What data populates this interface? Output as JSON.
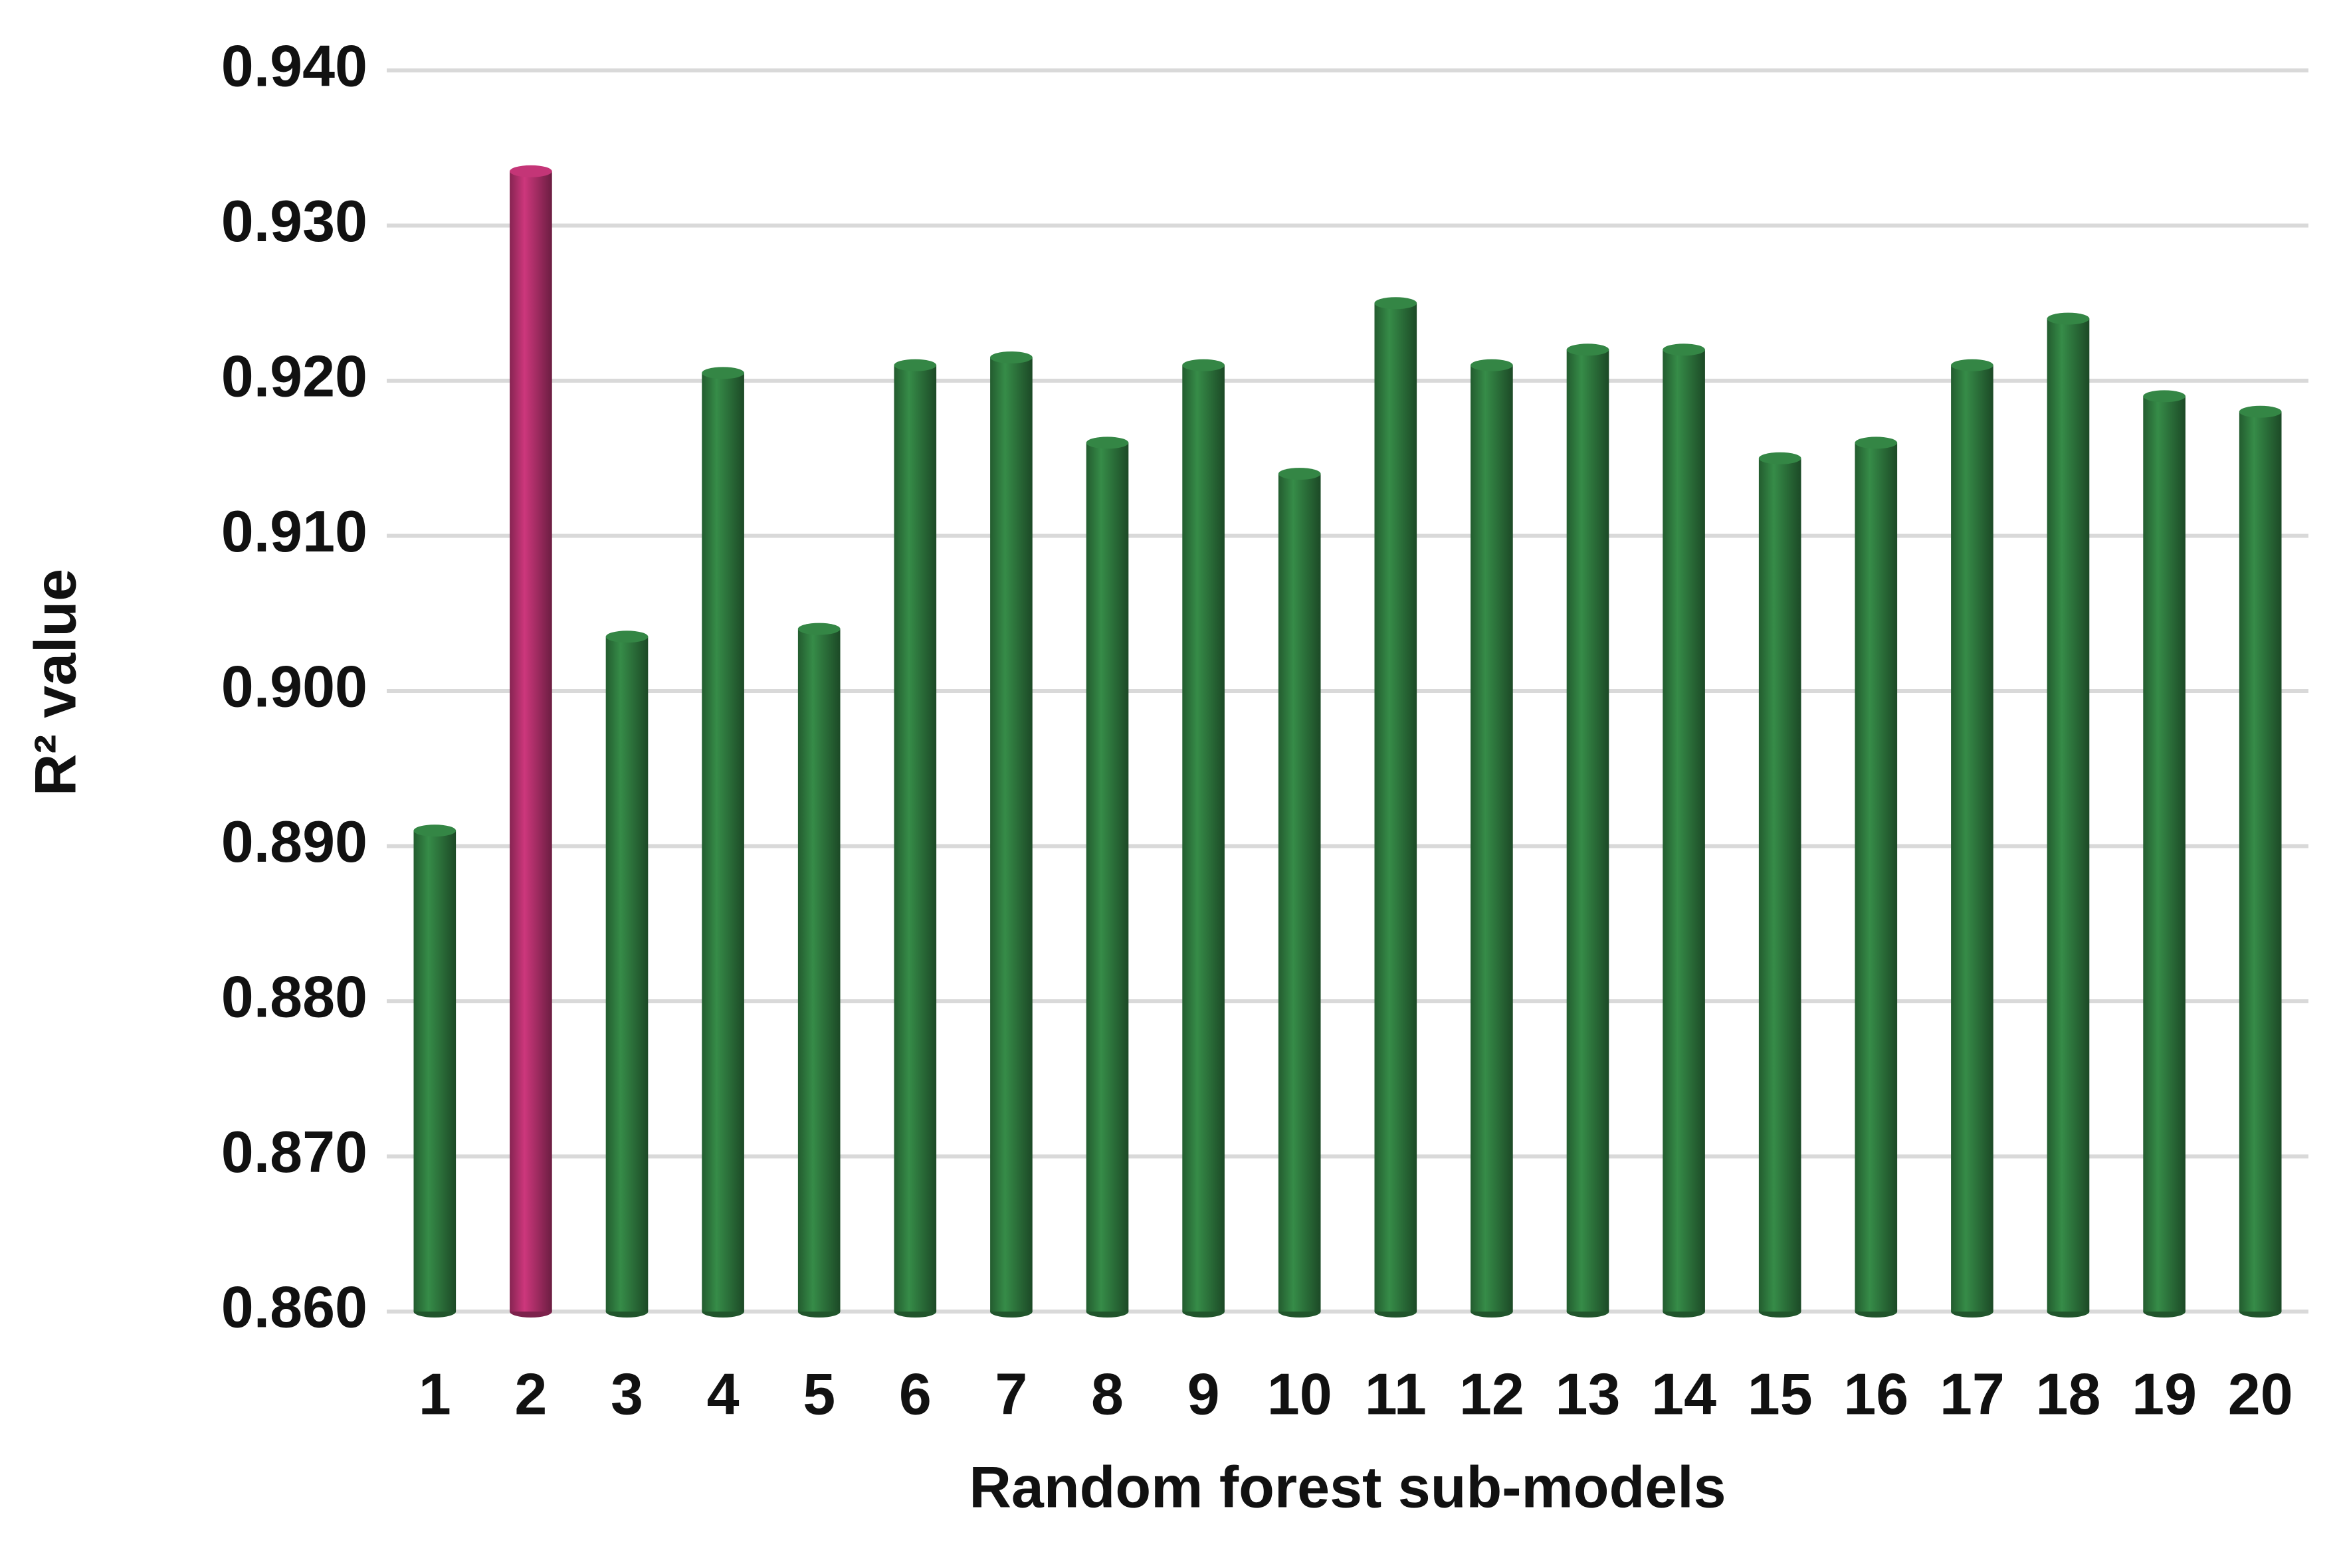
{
  "chart_data": {
    "type": "bar",
    "y_label": "R² value",
    "x_label": "Random forest sub-models",
    "categories": [
      "1",
      "2",
      "3",
      "4",
      "5",
      "6",
      "7",
      "8",
      "9",
      "10",
      "11",
      "12",
      "13",
      "14",
      "15",
      "16",
      "17",
      "18",
      "19",
      "20"
    ],
    "values": [
      0.891,
      0.9335,
      0.9035,
      0.9205,
      0.904,
      0.921,
      0.9215,
      0.916,
      0.921,
      0.914,
      0.925,
      0.921,
      0.922,
      0.922,
      0.915,
      0.916,
      0.921,
      0.924,
      0.919,
      0.918
    ],
    "colors": [
      "#2f7a3f",
      "#b2306c",
      "#2f7a3f",
      "#2f7a3f",
      "#2f7a3f",
      "#2f7a3f",
      "#2f7a3f",
      "#2f7a3f",
      "#2f7a3f",
      "#2f7a3f",
      "#2f7a3f",
      "#2f7a3f",
      "#2f7a3f",
      "#2f7a3f",
      "#2f7a3f",
      "#2f7a3f",
      "#2f7a3f",
      "#2f7a3f",
      "#2f7a3f",
      "#2f7a3f"
    ],
    "ylim": [
      0.86,
      0.94
    ],
    "yticks": [
      {
        "value": 0.86,
        "label": "0.860"
      },
      {
        "value": 0.87,
        "label": "0.870"
      },
      {
        "value": 0.88,
        "label": "0.880"
      },
      {
        "value": 0.89,
        "label": "0.890"
      },
      {
        "value": 0.9,
        "label": "0.900"
      },
      {
        "value": 0.91,
        "label": "0.910"
      },
      {
        "value": 0.92,
        "label": "0.920"
      },
      {
        "value": 0.93,
        "label": "0.930"
      },
      {
        "value": 0.94,
        "label": "0.940"
      }
    ],
    "grid": true
  }
}
